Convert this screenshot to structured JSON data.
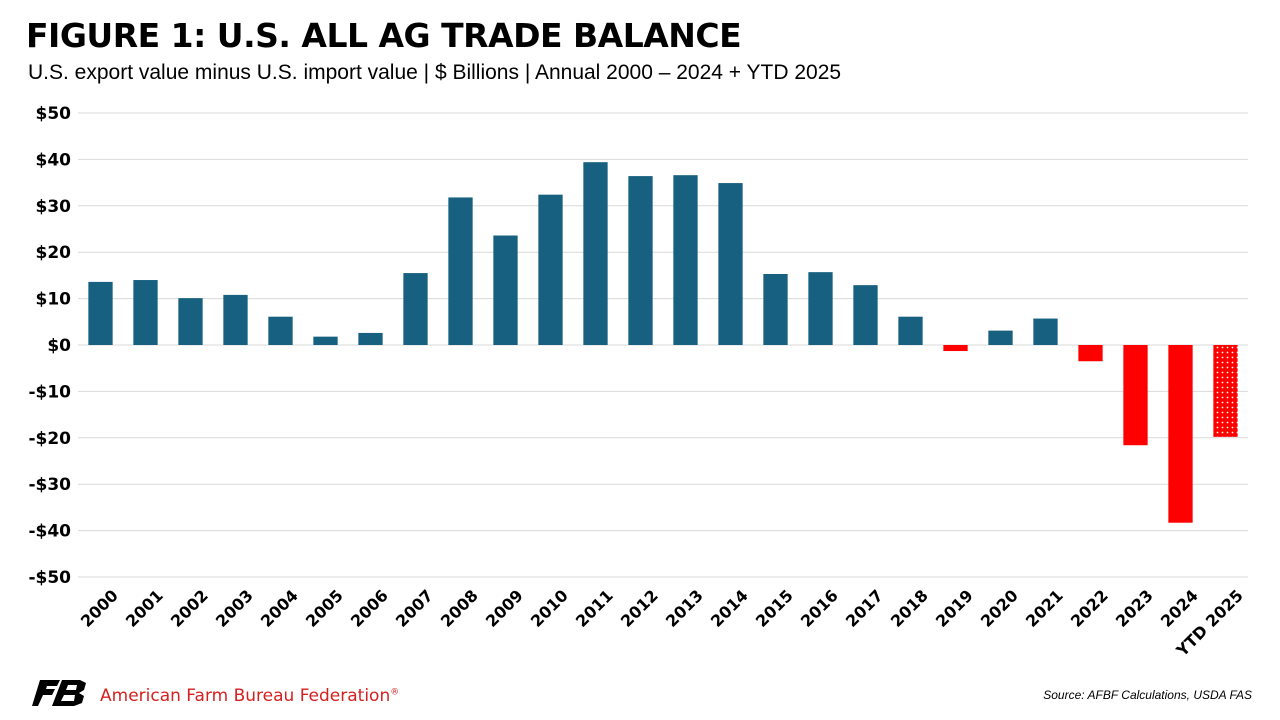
{
  "chart_data": {
    "type": "bar",
    "title": "FIGURE 1: U.S. ALL AG TRADE BALANCE",
    "subtitle": "U.S. export value minus U.S. import value | $ Billions | Annual 2000 – 2024 + YTD 2025",
    "categories": [
      "2000",
      "2001",
      "2002",
      "2003",
      "2004",
      "2005",
      "2006",
      "2007",
      "2008",
      "2009",
      "2010",
      "2011",
      "2012",
      "2013",
      "2014",
      "2015",
      "2016",
      "2017",
      "2018",
      "2019",
      "2020",
      "2021",
      "2022",
      "2023",
      "2024",
      "YTD 2025"
    ],
    "values": [
      13.6,
      14.0,
      10.1,
      10.8,
      6.1,
      1.8,
      2.6,
      15.5,
      31.8,
      23.6,
      32.4,
      39.4,
      36.4,
      36.6,
      34.9,
      15.3,
      15.7,
      12.9,
      6.1,
      -1.3,
      3.1,
      5.7,
      -3.5,
      -21.6,
      -38.3,
      -19.8
    ],
    "ylim": [
      -50,
      50
    ],
    "yticks": [
      "-$50",
      "-$40",
      "-$30",
      "-$20",
      "-$10",
      "$0",
      "$10",
      "$20",
      "$30",
      "$40",
      "$50"
    ],
    "ytick_values": [
      -50,
      -40,
      -30,
      -20,
      -10,
      0,
      10,
      20,
      30,
      40,
      50
    ],
    "grid": true,
    "legend": "none",
    "colors": {
      "positive": "#17607f",
      "negative": "#ff0000",
      "ytd_pattern": "dotted red"
    }
  },
  "footer": {
    "organization": "American Farm Bureau Federation",
    "registered_mark": "®",
    "logo_icon": "afbf-logo-icon",
    "source": "Source: AFBF Calculations, USDA FAS"
  }
}
